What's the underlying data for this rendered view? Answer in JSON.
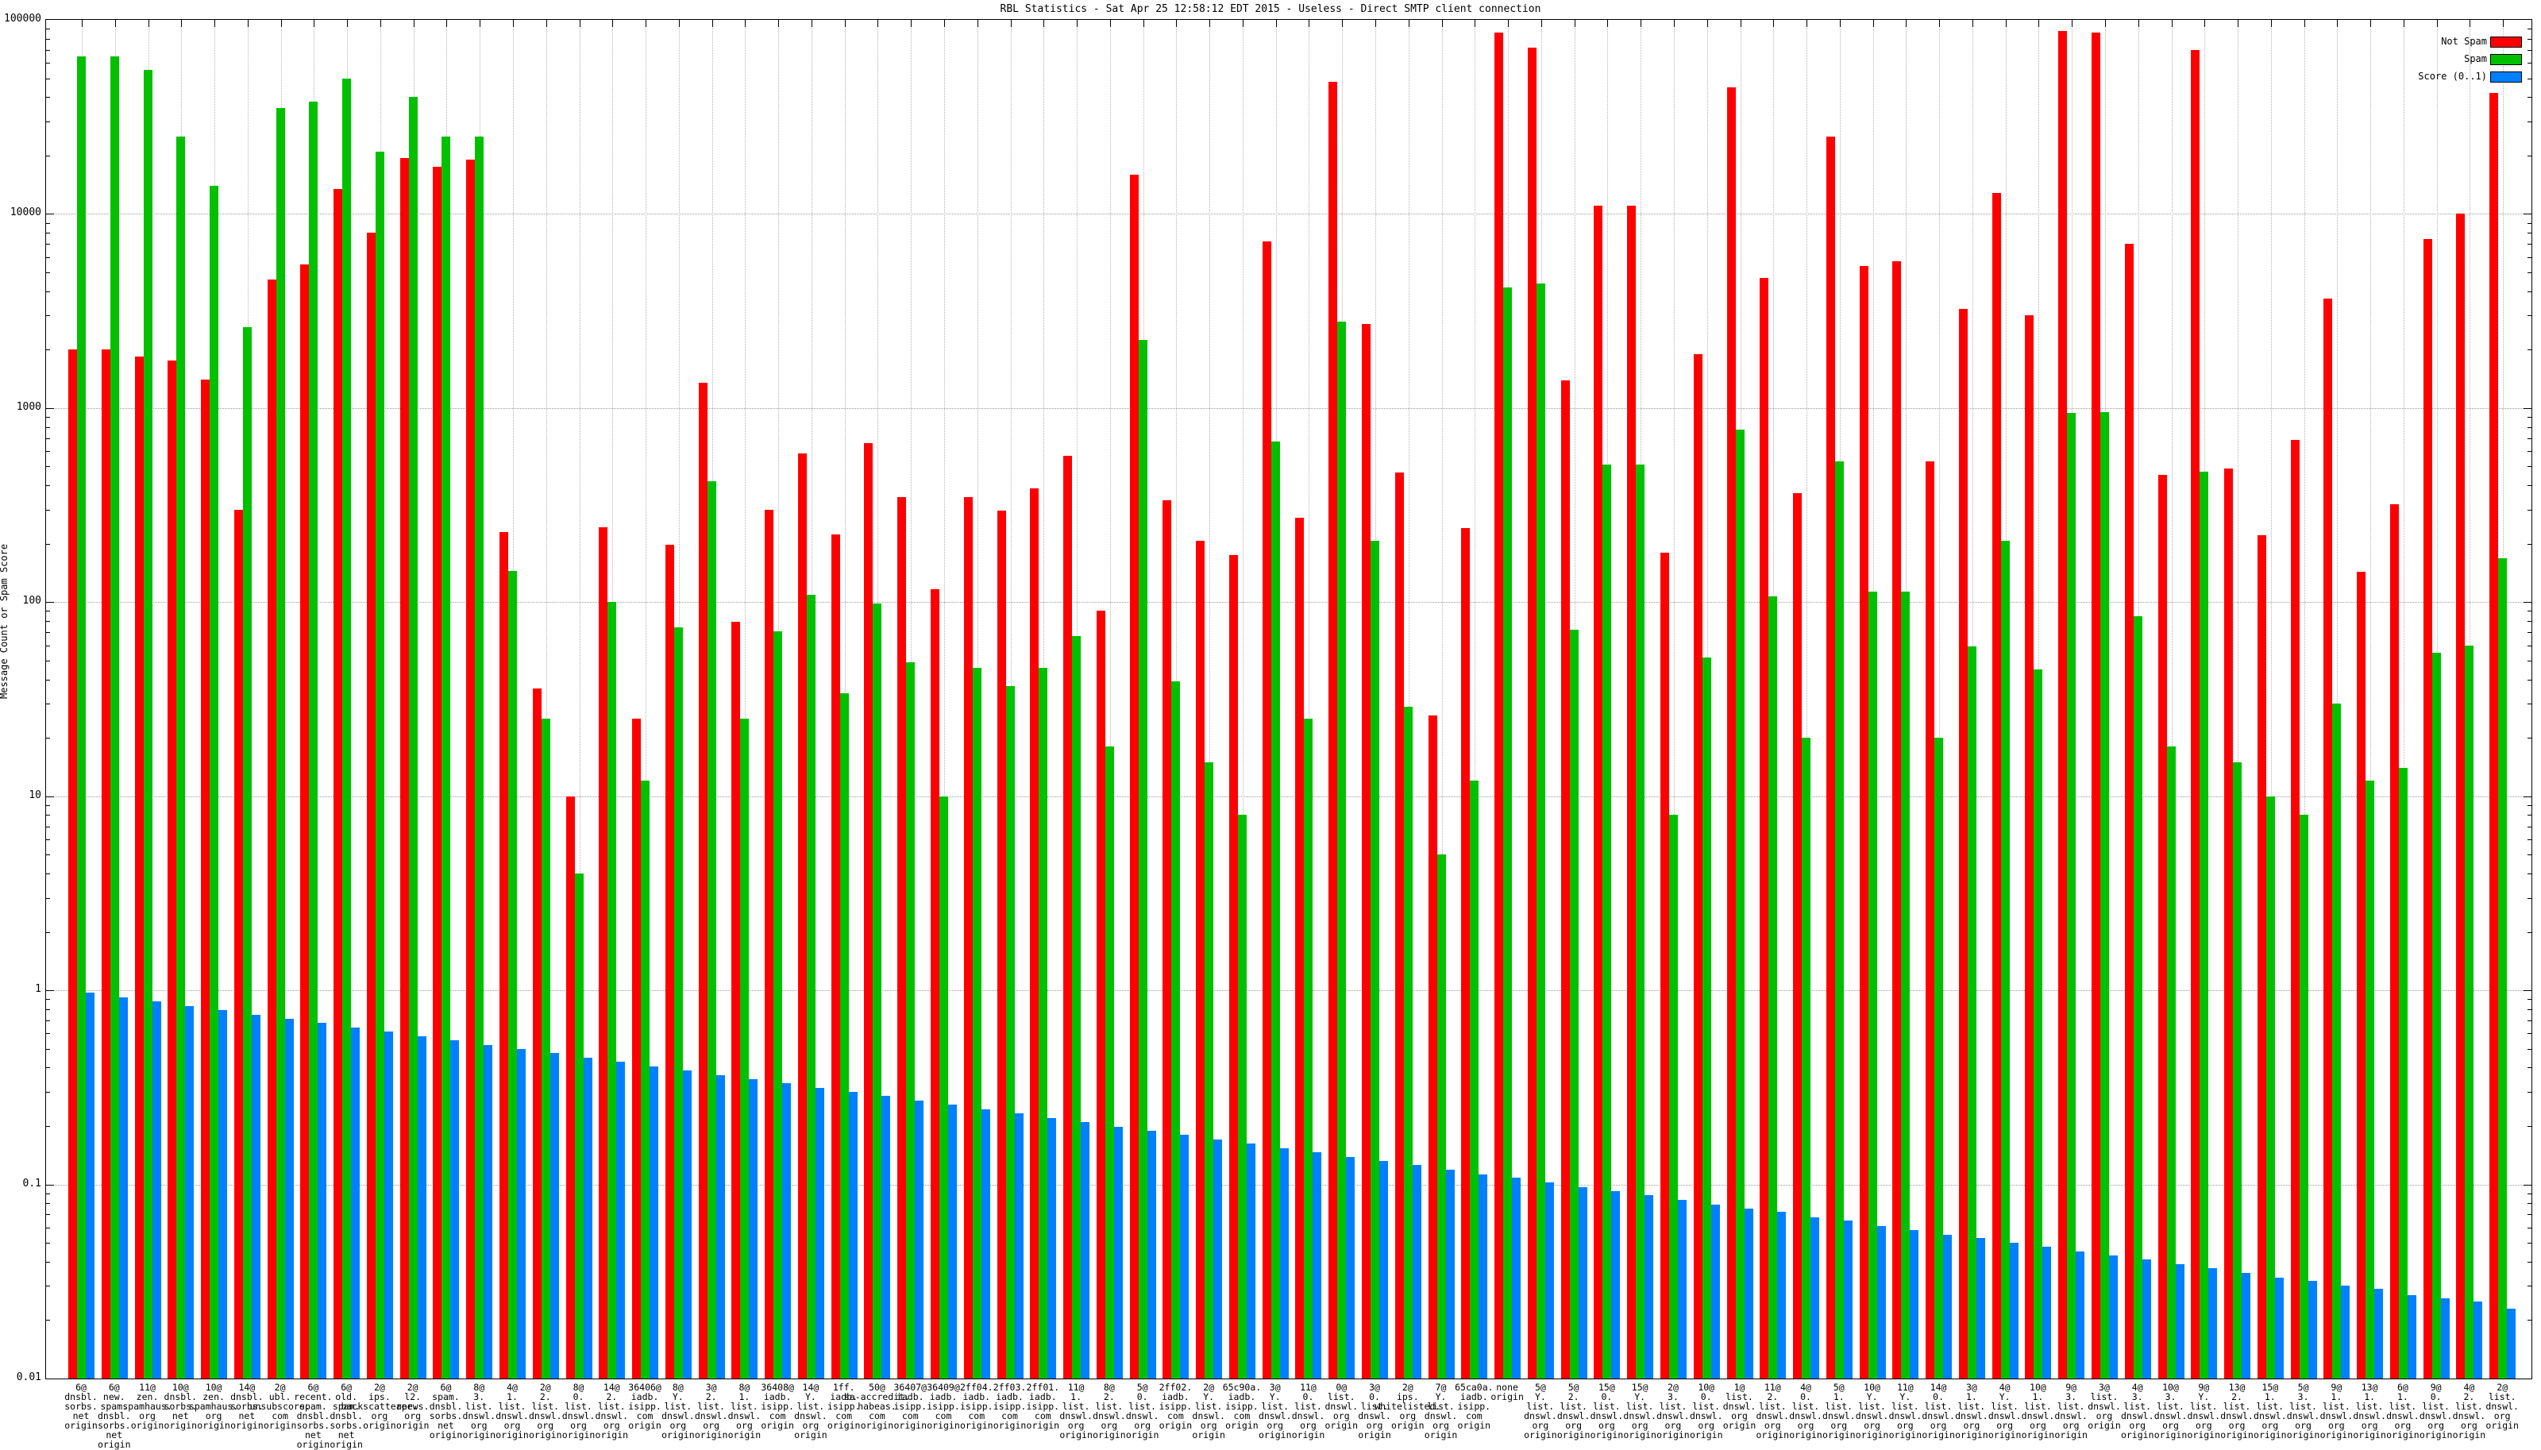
{
  "title": "RBL Statistics - Sat Apr 25 12:58:12 EDT 2015 - Useless - Direct SMTP client connection",
  "y_axis": {
    "label": "Message Count or Spam Score",
    "ticks": [
      {
        "text": "100000",
        "exp": 5
      },
      {
        "text": "10000",
        "exp": 4
      },
      {
        "text": "1000",
        "exp": 3
      },
      {
        "text": "100",
        "exp": 2
      },
      {
        "text": "10",
        "exp": 1
      },
      {
        "text": "1",
        "exp": 0
      },
      {
        "text": "0.1",
        "exp": -1
      },
      {
        "text": "0.01",
        "exp": -2
      }
    ]
  },
  "legend": [
    {
      "label": "Not Spam",
      "color": "#ff0000"
    },
    {
      "label": "Spam",
      "color": "#00c000"
    },
    {
      "label": "Score (0..1)",
      "color": "#0080ff"
    }
  ],
  "colors": {
    "not_spam": "#ff0000",
    "spam": "#00c000",
    "score": "#0080ff",
    "grid": "#9a9a9a"
  },
  "chart_data": {
    "type": "bar",
    "scale": "log",
    "ylim": [
      0.01,
      100000
    ],
    "title": "RBL Statistics - Sat Apr 25 12:58:12 EDT 2015 - Useless - Direct SMTP client connection",
    "ylabel": "Message Count or Spam Score",
    "series_names": [
      "Not Spam",
      "Spam",
      "Score (0..1)"
    ],
    "groups": [
      {
        "lines": [
          "6@",
          "dnsbl.",
          "sorbs.",
          "net",
          "origin"
        ],
        "not_spam": 2000,
        "spam": 65000,
        "score": 0.97
      },
      {
        "lines": [
          "6@",
          "new.",
          "spam.",
          "dnsbl.",
          "sorbs.",
          "net",
          "origin"
        ],
        "not_spam": 2000,
        "spam": 65000,
        "score": 0.922
      },
      {
        "lines": [
          "11@",
          "zen.",
          "spamhaus.",
          "org",
          "origin"
        ],
        "not_spam": 1850,
        "spam": 55000,
        "score": 0.876
      },
      {
        "lines": [
          "10@",
          "dnsbl.",
          "sorbs.",
          "net",
          "origin"
        ],
        "not_spam": 1750,
        "spam": 25000,
        "score": 0.832
      },
      {
        "lines": [
          "10@",
          "zen.",
          "spamhaus.",
          "org",
          "origin"
        ],
        "not_spam": 1400,
        "spam": 14000,
        "score": 0.791
      },
      {
        "lines": [
          "14@",
          "dnsbl.",
          "sorbs.",
          "net",
          "origin"
        ],
        "not_spam": 300,
        "spam": 2600,
        "score": 0.751
      },
      {
        "lines": [
          "2@",
          "ubl.",
          "unsubscore.",
          "com",
          "origin"
        ],
        "not_spam": 4600,
        "spam": 35000,
        "score": 0.714
      },
      {
        "lines": [
          "6@",
          "recent.",
          "spam.",
          "dnsbl.",
          "sorbs.",
          "net",
          "origin"
        ],
        "not_spam": 5500,
        "spam": 38000,
        "score": 0.678
      },
      {
        "lines": [
          "6@",
          "old.",
          "spam.",
          "dnsbl.",
          "sorbs.",
          "net",
          "origin"
        ],
        "not_spam": 13500,
        "spam": 50000,
        "score": 0.644
      },
      {
        "lines": [
          "2@",
          "ips.",
          "backscatterer.",
          "org",
          "origin"
        ],
        "not_spam": 8000,
        "spam": 21000,
        "score": 0.612
      },
      {
        "lines": [
          "2@",
          "l2.",
          "apews.",
          "org",
          "origin"
        ],
        "not_spam": 19500,
        "spam": 40000,
        "score": 0.582
      },
      {
        "lines": [
          "6@",
          "spam.",
          "dnsbl.",
          "sorbs.",
          "net",
          "origin"
        ],
        "not_spam": 17500,
        "spam": 25000,
        "score": 0.553
      },
      {
        "lines": [
          "8@",
          "3.",
          "list.",
          "dnswl.",
          "org",
          "origin"
        ],
        "not_spam": 19000,
        "spam": 25000,
        "score": 0.525
      },
      {
        "lines": [
          "4@",
          "1.",
          "list.",
          "dnswl.",
          "org",
          "origin"
        ],
        "not_spam": 230,
        "spam": 145,
        "score": 0.499
      },
      {
        "lines": [
          "2@",
          "2.",
          "list.",
          "dnswl.",
          "org",
          "origin"
        ],
        "not_spam": 36,
        "spam": 25,
        "score": 0.474
      },
      {
        "lines": [
          "8@",
          "0.",
          "list.",
          "dnswl.",
          "org",
          "origin"
        ],
        "not_spam": 10,
        "spam": 4,
        "score": 0.451
      },
      {
        "lines": [
          "14@",
          "2.",
          "list.",
          "dnswl.",
          "org",
          "origin"
        ],
        "not_spam": 243,
        "spam": 100,
        "score": 0.428
      },
      {
        "lines": [
          "36406@",
          "iadb.",
          "isipp.",
          "com",
          "origin"
        ],
        "not_spam": 25,
        "spam": 12,
        "score": 0.407
      },
      {
        "lines": [
          "8@",
          "Y.",
          "list.",
          "dnswl.",
          "org",
          "origin"
        ],
        "not_spam": 197,
        "spam": 74,
        "score": 0.387
      },
      {
        "lines": [
          "3@",
          "2.",
          "list.",
          "dnswl.",
          "org",
          "origin"
        ],
        "not_spam": 1350,
        "spam": 420,
        "score": 0.367
      },
      {
        "lines": [
          "8@",
          "1.",
          "list.",
          "dnswl.",
          "org",
          "origin"
        ],
        "not_spam": 79,
        "spam": 25,
        "score": 0.349
      },
      {
        "lines": [
          "36408@",
          "iadb.",
          "isipp.",
          "com",
          "origin"
        ],
        "not_spam": 300,
        "spam": 71,
        "score": 0.332
      },
      {
        "lines": [
          "14@",
          "Y.",
          "list.",
          "dnswl.",
          "org",
          "origin"
        ],
        "not_spam": 583,
        "spam": 109,
        "score": 0.315
      },
      {
        "lines": [
          "1ff.",
          "iadb.",
          "isipp.",
          "com",
          "origin"
        ],
        "not_spam": 223,
        "spam": 34,
        "score": 0.299
      },
      {
        "lines": [
          "50@",
          "sa-accredit.",
          "habeas.",
          "com",
          "origin"
        ],
        "not_spam": 660,
        "spam": 98,
        "score": 0.285
      },
      {
        "lines": [
          "36407@",
          "iadb.",
          "isipp.",
          "com",
          "origin"
        ],
        "not_spam": 347,
        "spam": 49,
        "score": 0.27
      },
      {
        "lines": [
          "36409@",
          "iadb.",
          "isipp.",
          "com",
          "origin"
        ],
        "not_spam": 117,
        "spam": 10,
        "score": 0.257
      },
      {
        "lines": [
          "2ff04.",
          "iadb.",
          "isipp.",
          "com",
          "origin"
        ],
        "not_spam": 347,
        "spam": 46,
        "score": 0.244
      },
      {
        "lines": [
          "2ff03.",
          "iadb.",
          "isipp.",
          "com",
          "origin"
        ],
        "not_spam": 296,
        "spam": 37,
        "score": 0.232
      },
      {
        "lines": [
          "2ff01.",
          "iadb.",
          "isipp.",
          "com",
          "origin"
        ],
        "not_spam": 387,
        "spam": 46,
        "score": 0.22
      },
      {
        "lines": [
          "11@",
          "1.",
          "list.",
          "dnswl.",
          "org",
          "origin"
        ],
        "not_spam": 568,
        "spam": 67,
        "score": 0.209
      },
      {
        "lines": [
          "8@",
          "2.",
          "list.",
          "dnswl.",
          "org",
          "origin"
        ],
        "not_spam": 90,
        "spam": 18,
        "score": 0.199
      },
      {
        "lines": [
          "5@",
          "0.",
          "list.",
          "dnswl.",
          "org",
          "origin"
        ],
        "not_spam": 16000,
        "spam": 2250,
        "score": 0.189
      },
      {
        "lines": [
          "2ff02.",
          "iadb.",
          "isipp.",
          "com",
          "origin"
        ],
        "not_spam": 334,
        "spam": 39,
        "score": 0.18
      },
      {
        "lines": [
          "2@",
          "Y.",
          "list.",
          "dnswl.",
          "org",
          "origin"
        ],
        "not_spam": 207,
        "spam": 15,
        "score": 0.171
      },
      {
        "lines": [
          "65c90a.",
          "iadb.",
          "isipp.",
          "com",
          "origin"
        ],
        "not_spam": 175,
        "spam": 8,
        "score": 0.162
      },
      {
        "lines": [
          "3@",
          "Y.",
          "list.",
          "dnswl.",
          "org",
          "origin"
        ],
        "not_spam": 7240,
        "spam": 673,
        "score": 0.154
      },
      {
        "lines": [
          "11@",
          "0.",
          "list.",
          "dnswl.",
          "org",
          "origin"
        ],
        "not_spam": 273,
        "spam": 25,
        "score": 0.146
      },
      {
        "lines": [
          "0@",
          "list.",
          "dnswl.",
          "org",
          "origin"
        ],
        "not_spam": 48000,
        "spam": 2800,
        "score": 0.139
      },
      {
        "lines": [
          "3@",
          "0.",
          "list.",
          "dnswl.",
          "org",
          "origin"
        ],
        "not_spam": 2700,
        "spam": 207,
        "score": 0.132
      },
      {
        "lines": [
          "2@",
          "ips.",
          "whitelisted.",
          "org",
          "origin"
        ],
        "not_spam": 466,
        "spam": 29,
        "score": 0.126
      },
      {
        "lines": [
          "7@",
          "Y.",
          "list.",
          "dnswl.",
          "org",
          "origin"
        ],
        "not_spam": 26,
        "spam": 5,
        "score": 0.119
      },
      {
        "lines": [
          "65ca0a.",
          "iadb.",
          "isipp.",
          "com",
          "origin"
        ],
        "not_spam": 240,
        "spam": 12,
        "score": 0.113
      },
      {
        "lines": [
          "none",
          "origin"
        ],
        "not_spam": 86000,
        "spam": 4200,
        "score": 0.108
      },
      {
        "lines": [
          "5@",
          "Y.",
          "list.",
          "dnswl.",
          "org",
          "origin"
        ],
        "not_spam": 72000,
        "spam": 4400,
        "score": 0.102
      },
      {
        "lines": [
          "5@",
          "2.",
          "list.",
          "dnswl.",
          "org",
          "origin"
        ],
        "not_spam": 1390,
        "spam": 72,
        "score": 0.097
      },
      {
        "lines": [
          "15@",
          "0.",
          "list.",
          "dnswl.",
          "org",
          "origin"
        ],
        "not_spam": 11000,
        "spam": 510,
        "score": 0.092
      },
      {
        "lines": [
          "15@",
          "Y.",
          "list.",
          "dnswl.",
          "org",
          "origin"
        ],
        "not_spam": 11000,
        "spam": 510,
        "score": 0.088
      },
      {
        "lines": [
          "2@",
          "3.",
          "list.",
          "dnswl.",
          "org",
          "origin"
        ],
        "not_spam": 179,
        "spam": 8,
        "score": 0.083
      },
      {
        "lines": [
          "10@",
          "0.",
          "list.",
          "dnswl.",
          "org",
          "origin"
        ],
        "not_spam": 1900,
        "spam": 52,
        "score": 0.079
      },
      {
        "lines": [
          "1@",
          "list.",
          "dnswl.",
          "org",
          "origin"
        ],
        "not_spam": 45000,
        "spam": 773,
        "score": 0.075
      },
      {
        "lines": [
          "11@",
          "2.",
          "list.",
          "dnswl.",
          "org",
          "origin"
        ],
        "not_spam": 4700,
        "spam": 107,
        "score": 0.072
      },
      {
        "lines": [
          "4@",
          "0.",
          "list.",
          "dnswl.",
          "org",
          "origin"
        ],
        "not_spam": 363,
        "spam": 20,
        "score": 0.068
      },
      {
        "lines": [
          "5@",
          "1.",
          "list.",
          "dnswl.",
          "org",
          "origin"
        ],
        "not_spam": 25000,
        "spam": 530,
        "score": 0.065
      },
      {
        "lines": [
          "10@",
          "Y.",
          "list.",
          "dnswl.",
          "org",
          "origin"
        ],
        "not_spam": 5400,
        "spam": 113,
        "score": 0.061
      },
      {
        "lines": [
          "11@",
          "Y.",
          "list.",
          "dnswl.",
          "org",
          "origin"
        ],
        "not_spam": 5700,
        "spam": 113,
        "score": 0.058
      },
      {
        "lines": [
          "14@",
          "0.",
          "list.",
          "dnswl.",
          "org",
          "origin"
        ],
        "not_spam": 530,
        "spam": 20,
        "score": 0.055
      },
      {
        "lines": [
          "3@",
          "1.",
          "list.",
          "dnswl.",
          "org",
          "origin"
        ],
        "not_spam": 3250,
        "spam": 59,
        "score": 0.053
      },
      {
        "lines": [
          "4@",
          "Y.",
          "list.",
          "dnswl.",
          "org",
          "origin"
        ],
        "not_spam": 12800,
        "spam": 207,
        "score": 0.05
      },
      {
        "lines": [
          "10@",
          "1.",
          "list.",
          "dnswl.",
          "org",
          "origin"
        ],
        "not_spam": 3000,
        "spam": 45,
        "score": 0.048
      },
      {
        "lines": [
          "9@",
          "3.",
          "list.",
          "dnswl.",
          "org",
          "origin"
        ],
        "not_spam": 88000,
        "spam": 940,
        "score": 0.045
      },
      {
        "lines": [
          "3@",
          "list.",
          "dnswl.",
          "org",
          "origin"
        ],
        "not_spam": 86000,
        "spam": 950,
        "score": 0.043
      },
      {
        "lines": [
          "4@",
          "3.",
          "list.",
          "dnswl.",
          "org",
          "origin"
        ],
        "not_spam": 7000,
        "spam": 85,
        "score": 0.041
      },
      {
        "lines": [
          "10@",
          "3.",
          "list.",
          "dnswl.",
          "org",
          "origin"
        ],
        "not_spam": 453,
        "spam": 18,
        "score": 0.039
      },
      {
        "lines": [
          "9@",
          "Y.",
          "list.",
          "dnswl.",
          "org",
          "origin"
        ],
        "not_spam": 70000,
        "spam": 470,
        "score": 0.037
      },
      {
        "lines": [
          "13@",
          "2.",
          "list.",
          "dnswl.",
          "org",
          "origin"
        ],
        "not_spam": 488,
        "spam": 15,
        "score": 0.035
      },
      {
        "lines": [
          "15@",
          "1.",
          "list.",
          "dnswl.",
          "org",
          "origin"
        ],
        "not_spam": 221,
        "spam": 10,
        "score": 0.033
      },
      {
        "lines": [
          "5@",
          "3.",
          "list.",
          "dnswl.",
          "org",
          "origin"
        ],
        "not_spam": 686,
        "spam": 8,
        "score": 0.032
      },
      {
        "lines": [
          "9@",
          "1.",
          "list.",
          "dnswl.",
          "org",
          "origin"
        ],
        "not_spam": 3660,
        "spam": 30,
        "score": 0.03
      },
      {
        "lines": [
          "13@",
          "1.",
          "list.",
          "dnswl.",
          "org",
          "origin"
        ],
        "not_spam": 143,
        "spam": 12,
        "score": 0.029
      },
      {
        "lines": [
          "6@",
          "1.",
          "list.",
          "dnswl.",
          "org",
          "origin"
        ],
        "not_spam": 320,
        "spam": 14,
        "score": 0.027
      },
      {
        "lines": [
          "9@",
          "0.",
          "list.",
          "dnswl.",
          "org",
          "origin"
        ],
        "not_spam": 7400,
        "spam": 55,
        "score": 0.026
      },
      {
        "lines": [
          "4@",
          "2.",
          "list.",
          "dnswl.",
          "org",
          "origin"
        ],
        "not_spam": 10000,
        "spam": 60,
        "score": 0.025
      },
      {
        "lines": [
          "2@",
          "list.",
          "dnswl.",
          "org",
          "origin"
        ],
        "not_spam": 42000,
        "spam": 169,
        "score": 0.023
      }
    ]
  }
}
